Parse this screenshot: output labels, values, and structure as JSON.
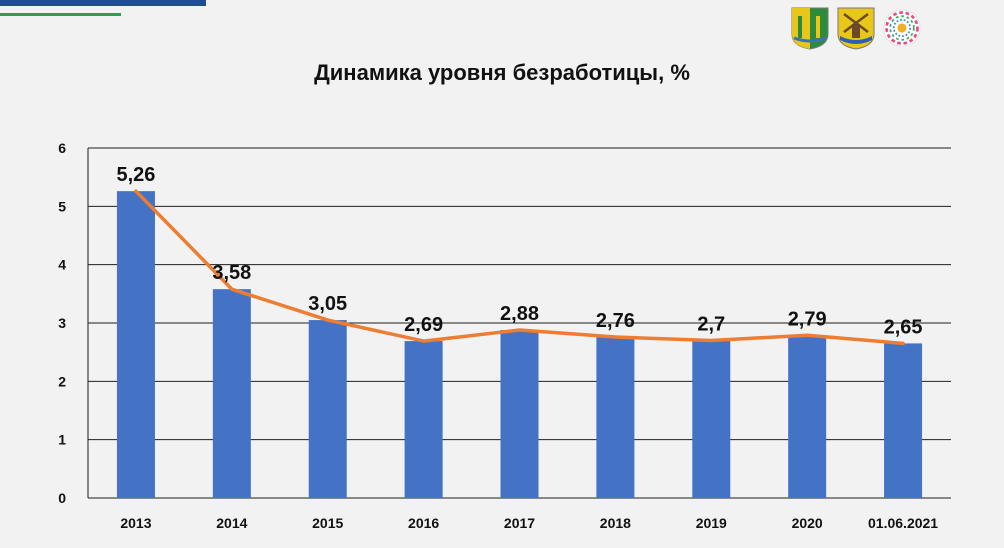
{
  "header": {
    "title": "Динамика уровня безработицы, %",
    "logos": [
      "district-coat-of-arms-icon",
      "windmill-coat-of-arms-icon",
      "anniversary-emblem-icon"
    ]
  },
  "colors": {
    "bar": "#4472c4",
    "line": "#ed7d31",
    "background": "#f2f2f2",
    "grid": "#1f1f1f"
  },
  "chart_data": {
    "type": "bar",
    "title": "Динамика уровня безработицы, %",
    "xlabel": "",
    "ylabel": "",
    "categories": [
      "2013",
      "2014",
      "2015",
      "2016",
      "2017",
      "2018",
      "2019",
      "2020",
      "01.06.2021"
    ],
    "values": [
      5.26,
      3.58,
      3.05,
      2.69,
      2.88,
      2.76,
      2.7,
      2.79,
      2.65
    ],
    "data_labels": [
      "5,26",
      "3,58",
      "3,05",
      "2,69",
      "2,88",
      "2,76",
      "2,7",
      "2,79",
      "2,65"
    ],
    "overlay_line": true,
    "ylim": [
      0,
      6
    ],
    "yticks": [
      "0",
      "1",
      "2",
      "3",
      "4",
      "5",
      "6"
    ],
    "grid": true,
    "legend": "none"
  }
}
